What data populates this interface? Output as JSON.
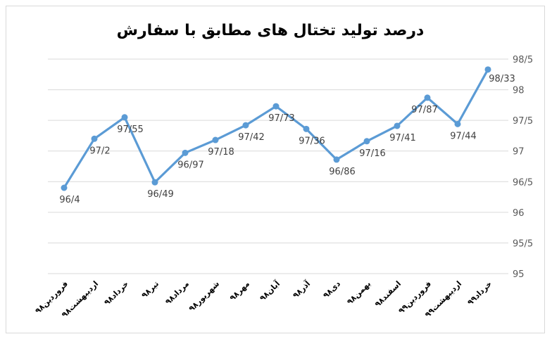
{
  "chart_data": {
    "type": "line",
    "title": "درصد تولید تختال های مطابق با سفارش",
    "categories": [
      "فروردین۹۸",
      "اردیبهشت۹۸",
      "خرداد۹۸",
      "تیر۹۸",
      "مرداد۹۸",
      "شهریور۹۸",
      "مهر۹۸",
      "آبان۹۸",
      "آذر۹۸",
      "دی۹۸",
      "بهمن۹۸",
      "اسفند۹۸",
      "فروردین۹۹",
      "اردیبهشت۹۹",
      "خرداد۹۹"
    ],
    "values": [
      96.4,
      97.2,
      97.55,
      96.49,
      96.97,
      97.18,
      97.42,
      97.73,
      97.36,
      96.86,
      97.16,
      97.41,
      97.87,
      97.44,
      98.33
    ],
    "data_labels": [
      "96/4",
      "97/2",
      "97/55",
      "96/49",
      "96/97",
      "97/18",
      "97/42",
      "97/73",
      "97/36",
      "96/86",
      "97/16",
      "97/41",
      "97/87",
      "97/44",
      "98/33"
    ],
    "y_ticks": [
      95,
      95.5,
      96,
      96.5,
      97,
      97.5,
      98,
      98.5
    ],
    "y_tick_labels": [
      "95",
      "95/5",
      "96",
      "96/5",
      "97",
      "97/5",
      "98",
      "98/5"
    ],
    "ylim": [
      95,
      98.5
    ],
    "y_axis_side": "right",
    "grid": true,
    "legend": "none",
    "line_color": "#5b9bd5"
  }
}
